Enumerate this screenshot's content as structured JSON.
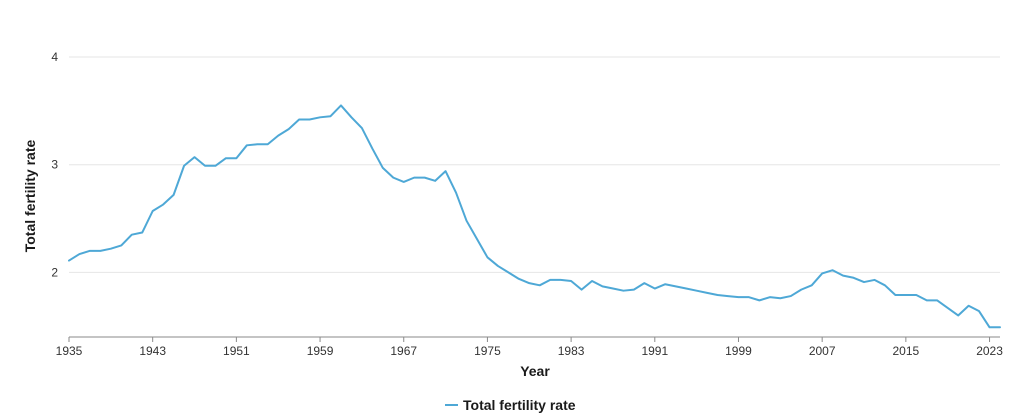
{
  "chart_data": {
    "type": "line",
    "xlabel": "Year",
    "ylabel": "Total fertility rate",
    "xlim": [
      1935,
      2024
    ],
    "ylim": [
      1.4,
      4
    ],
    "x_ticks": [
      "1935",
      "1943",
      "1951",
      "1959",
      "1967",
      "1975",
      "1983",
      "1991",
      "1999",
      "2007",
      "2015",
      "2023"
    ],
    "y_ticks": [
      "2",
      "3",
      "4"
    ],
    "grid": "horizontal",
    "legend": "bottom-center",
    "colors": {
      "line": "#4ea8d6",
      "grid": "#e6e6e6",
      "axis": "#8a8a8a"
    },
    "series": [
      {
        "name": "Total fertility rate",
        "x": [
          1935,
          1936,
          1937,
          1938,
          1939,
          1940,
          1941,
          1942,
          1943,
          1944,
          1945,
          1946,
          1947,
          1948,
          1949,
          1950,
          1951,
          1952,
          1953,
          1954,
          1955,
          1956,
          1957,
          1958,
          1959,
          1960,
          1961,
          1962,
          1963,
          1964,
          1965,
          1966,
          1967,
          1968,
          1969,
          1970,
          1971,
          1972,
          1973,
          1974,
          1975,
          1976,
          1977,
          1978,
          1979,
          1980,
          1981,
          1982,
          1983,
          1984,
          1985,
          1986,
          1987,
          1988,
          1989,
          1990,
          1991,
          1992,
          1993,
          1994,
          1995,
          1996,
          1997,
          1998,
          1999,
          2000,
          2001,
          2002,
          2003,
          2004,
          2005,
          2006,
          2007,
          2008,
          2009,
          2010,
          2011,
          2012,
          2013,
          2014,
          2015,
          2016,
          2017,
          2018,
          2019,
          2020,
          2021,
          2022,
          2023,
          2024
        ],
        "values": [
          2.11,
          2.17,
          2.2,
          2.2,
          2.22,
          2.25,
          2.35,
          2.37,
          2.57,
          2.63,
          2.72,
          2.99,
          3.07,
          2.99,
          2.99,
          3.06,
          3.06,
          3.18,
          3.19,
          3.19,
          3.27,
          3.33,
          3.42,
          3.42,
          3.44,
          3.45,
          3.55,
          3.44,
          3.34,
          3.15,
          2.97,
          2.88,
          2.84,
          2.88,
          2.88,
          2.85,
          2.94,
          2.74,
          2.48,
          2.31,
          2.14,
          2.06,
          2.0,
          1.94,
          1.9,
          1.88,
          1.93,
          1.93,
          1.92,
          1.84,
          1.92,
          1.87,
          1.85,
          1.83,
          1.84,
          1.9,
          1.85,
          1.89,
          1.87,
          1.85,
          1.83,
          1.81,
          1.79,
          1.78,
          1.77,
          1.77,
          1.74,
          1.77,
          1.76,
          1.78,
          1.84,
          1.88,
          1.99,
          2.02,
          1.97,
          1.95,
          1.91,
          1.93,
          1.88,
          1.79,
          1.79,
          1.79,
          1.74,
          1.74,
          1.67,
          1.6,
          1.69,
          1.64,
          1.49,
          1.49
        ]
      }
    ]
  }
}
